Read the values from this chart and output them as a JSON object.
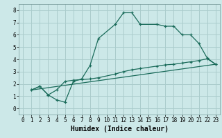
{
  "xlabel": "Humidex (Indice chaleur)",
  "background_color": "#cce8e8",
  "grid_color": "#aacccc",
  "line_color": "#1a6b5a",
  "xlim": [
    -0.5,
    23.5
  ],
  "ylim": [
    -0.5,
    8.5
  ],
  "xticks": [
    0,
    1,
    2,
    3,
    4,
    5,
    6,
    7,
    8,
    9,
    10,
    11,
    12,
    13,
    14,
    15,
    16,
    17,
    18,
    19,
    20,
    21,
    22,
    23
  ],
  "yticks": [
    0,
    1,
    2,
    3,
    4,
    5,
    6,
    7,
    8
  ],
  "line1_x": [
    1,
    2,
    3,
    4,
    5,
    6,
    7,
    8,
    9,
    11,
    12,
    13,
    14,
    16,
    17,
    18,
    19,
    20,
    21,
    22,
    23
  ],
  "line1_y": [
    1.5,
    1.8,
    1.1,
    0.7,
    0.5,
    2.2,
    2.4,
    3.5,
    5.7,
    6.85,
    7.8,
    7.8,
    6.85,
    6.85,
    6.7,
    6.7,
    6.0,
    6.0,
    5.3,
    4.1,
    3.6
  ],
  "line2_x": [
    1,
    2,
    3,
    4,
    5,
    6,
    7,
    8,
    9,
    11,
    12,
    13,
    14,
    16,
    17,
    18,
    19,
    20,
    21,
    22,
    23
  ],
  "line2_y": [
    1.5,
    1.8,
    1.1,
    1.5,
    2.2,
    2.3,
    2.35,
    2.4,
    2.5,
    2.8,
    3.0,
    3.15,
    3.25,
    3.45,
    3.55,
    3.6,
    3.7,
    3.8,
    3.9,
    4.05,
    3.6
  ],
  "line3_x": [
    1,
    23
  ],
  "line3_y": [
    1.5,
    3.6
  ],
  "tick_fontsize": 5.5,
  "xlabel_fontsize": 7.0
}
